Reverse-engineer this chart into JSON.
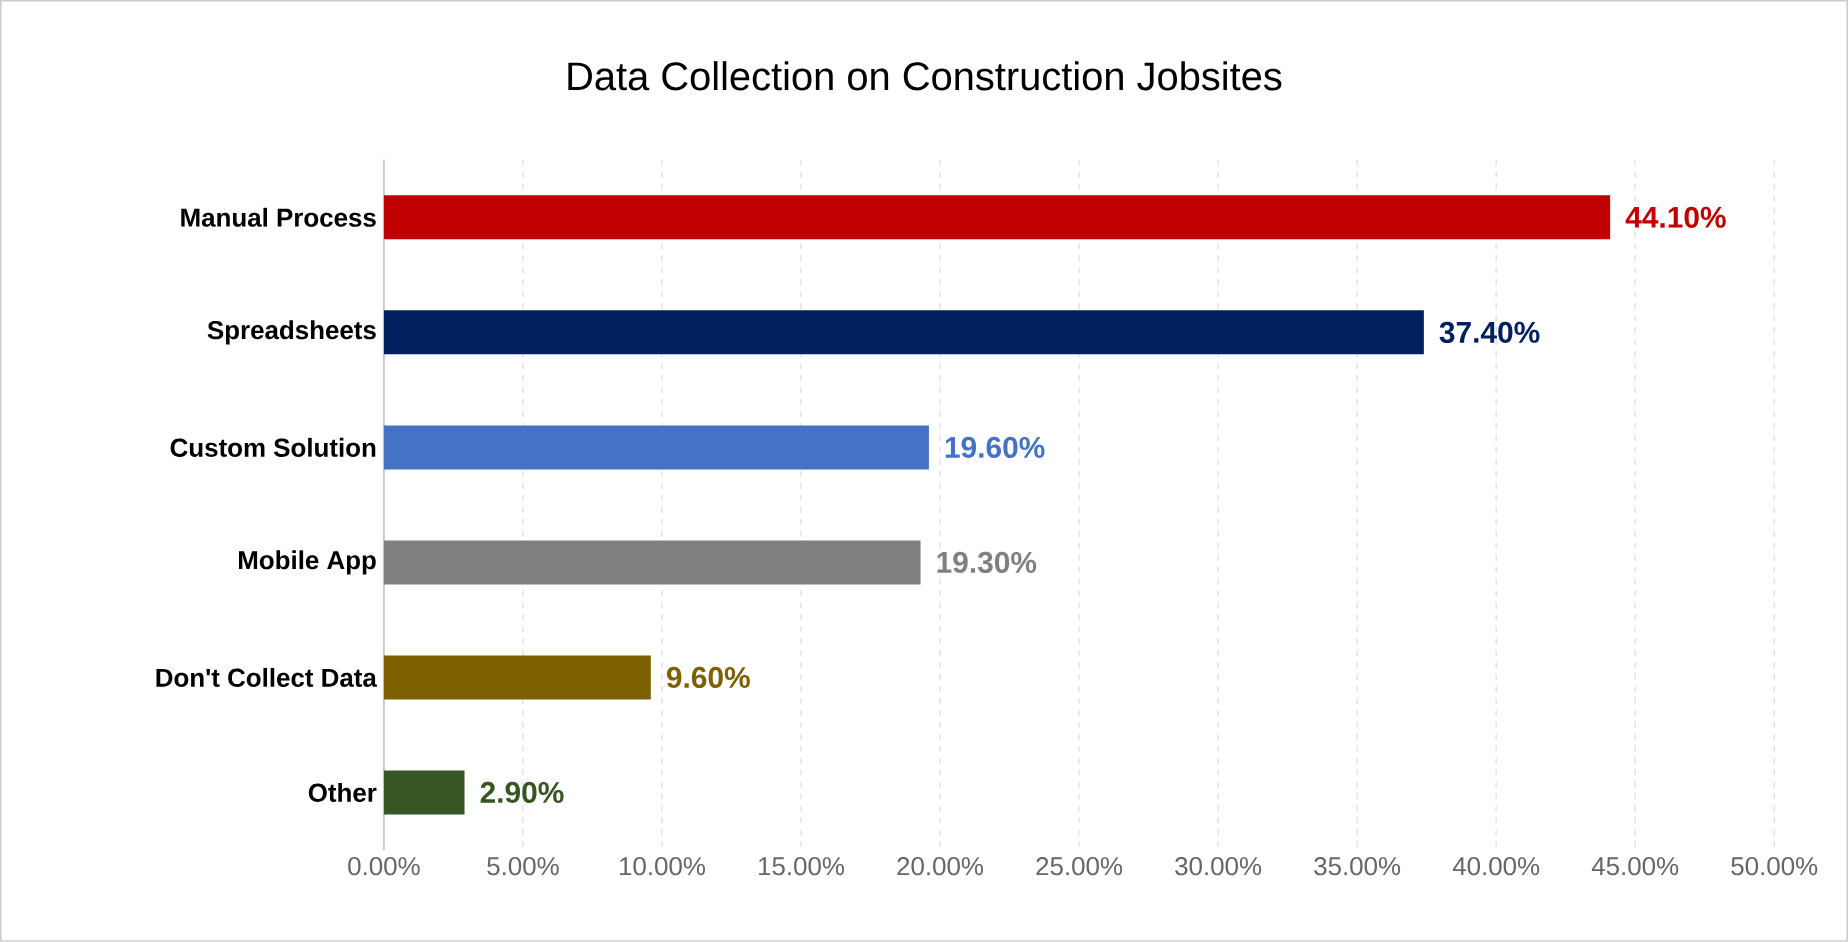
{
  "chart_data": {
    "type": "bar",
    "orientation": "horizontal",
    "title": "Data Collection on Construction Jobsites",
    "categories": [
      "Manual Process",
      "Spreadsheets",
      "Custom Solution",
      "Mobile App",
      "Don't Collect Data",
      "Other"
    ],
    "values": [
      44.1,
      37.4,
      19.6,
      19.3,
      9.6,
      2.9
    ],
    "colors": [
      "#c00000",
      "#002060",
      "#4472c4",
      "#808080",
      "#7f6000",
      "#375623"
    ],
    "value_labels": [
      "44.10%",
      "37.40%",
      "19.60%",
      "19.30%",
      "9.60%",
      "2.90%"
    ],
    "xlim": [
      0,
      50
    ],
    "xticks": [
      {
        "value": 0,
        "label": "0.00%"
      },
      {
        "value": 5,
        "label": "5.00%"
      },
      {
        "value": 10,
        "label": "10.00%"
      },
      {
        "value": 15,
        "label": "15.00%"
      },
      {
        "value": 20,
        "label": "20.00%"
      },
      {
        "value": 25,
        "label": "25.00%"
      },
      {
        "value": 30,
        "label": "30.00%"
      },
      {
        "value": 35,
        "label": "35.00%"
      },
      {
        "value": 40,
        "label": "40.00%"
      },
      {
        "value": 45,
        "label": "45.00%"
      },
      {
        "value": 50,
        "label": "50.00%"
      }
    ],
    "grid": "x"
  }
}
